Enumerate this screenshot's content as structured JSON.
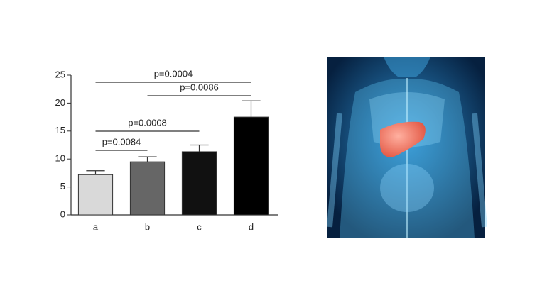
{
  "chart_data": {
    "type": "bar",
    "categories": [
      "a",
      "b",
      "c",
      "d"
    ],
    "values": [
      7.2,
      9.5,
      11.3,
      17.5
    ],
    "errors": [
      0.7,
      0.9,
      1.2,
      2.9
    ],
    "colors": [
      "#d9d9d9",
      "#666666",
      "#111111",
      "#000000"
    ],
    "ylim": [
      0,
      25
    ],
    "yticks": [
      0,
      5,
      10,
      15,
      20,
      25
    ],
    "grid": false,
    "annotations": [
      {
        "label": "p=0.0004",
        "between": [
          "a",
          "d"
        ]
      },
      {
        "label": "p=0.0086",
        "between": [
          "b",
          "d"
        ]
      },
      {
        "label": "p=0.0008",
        "between": [
          "a",
          "c"
        ]
      },
      {
        "label": "p=0.0084",
        "between": [
          "a",
          "b"
        ]
      }
    ]
  }
}
